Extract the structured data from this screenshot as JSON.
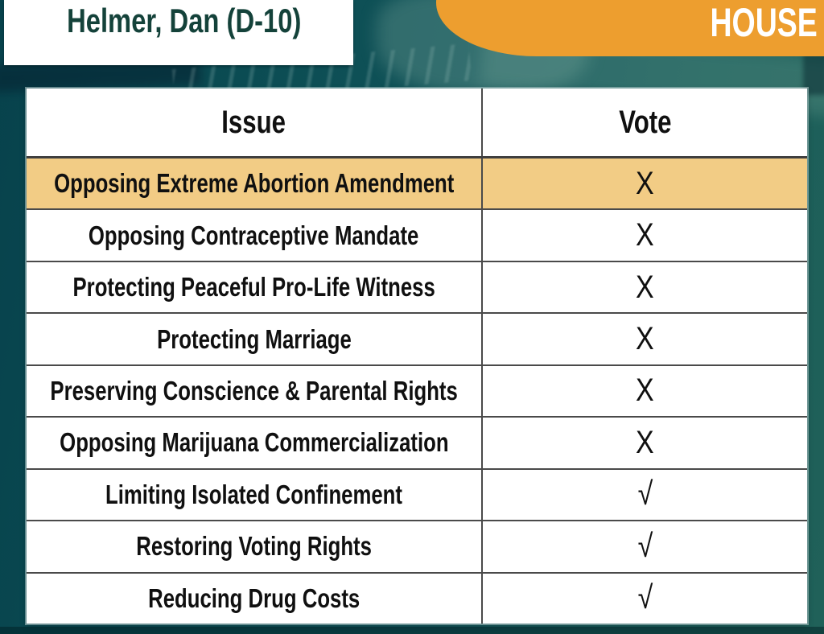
{
  "header": {
    "legislator": "Helmer, Dan (D-10)",
    "chamber": "HOUSE"
  },
  "table": {
    "columns": [
      "Issue",
      "Vote"
    ],
    "rows": [
      {
        "issue": "Opposing Extreme Abortion Amendment",
        "vote": "X",
        "highlighted": true
      },
      {
        "issue": "Opposing Contraceptive Mandate",
        "vote": "X",
        "highlighted": false
      },
      {
        "issue": "Protecting Peaceful Pro-Life Witness",
        "vote": "X",
        "highlighted": false
      },
      {
        "issue": "Protecting Marriage",
        "vote": "X",
        "highlighted": false
      },
      {
        "issue": "Preserving Conscience & Parental Rights",
        "vote": "X",
        "highlighted": false
      },
      {
        "issue": "Opposing Marijuana Commercialization",
        "vote": "X",
        "highlighted": false
      },
      {
        "issue": "Limiting Isolated Confinement",
        "vote": "√",
        "highlighted": false
      },
      {
        "issue": "Restoring Voting Rights",
        "vote": "√",
        "highlighted": false
      },
      {
        "issue": "Reducing Drug Costs",
        "vote": "√",
        "highlighted": false
      }
    ]
  },
  "chart_data": {
    "type": "table",
    "title": "Helmer, Dan (D-10) — HOUSE",
    "columns": [
      "Issue",
      "Vote"
    ],
    "rows": [
      [
        "Opposing Extreme Abortion Amendment",
        "X"
      ],
      [
        "Opposing Contraceptive Mandate",
        "X"
      ],
      [
        "Protecting Peaceful Pro-Life Witness",
        "X"
      ],
      [
        "Protecting Marriage",
        "X"
      ],
      [
        "Preserving Conscience & Parental Rights",
        "X"
      ],
      [
        "Opposing Marijuana Commercialization",
        "X"
      ],
      [
        "Limiting Isolated Confinement",
        "√"
      ],
      [
        "Restoring Voting Rights",
        "√"
      ],
      [
        "Reducing Drug Costs",
        "√"
      ]
    ]
  },
  "colors": {
    "background_teal": "#0B4C53",
    "background_teal_light": "#206159",
    "banner_orange": "#ED9E2F",
    "highlight_row": "#F2CC85",
    "name_text": "#14423A",
    "divider_gray": "#4A4A4A"
  }
}
